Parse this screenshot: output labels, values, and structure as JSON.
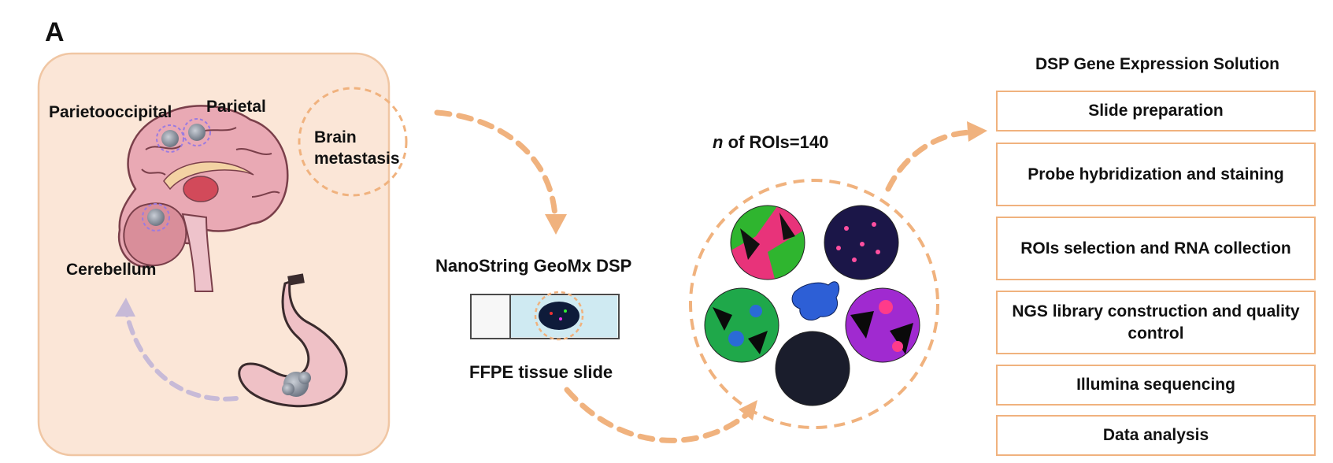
{
  "panel_label": "A",
  "brain": {
    "labels": {
      "parietooccipital": "Parietooccipital",
      "parietal": "Parietal",
      "cerebellum": "Cerebellum",
      "brain_metastasis": "Brain metastasis"
    }
  },
  "slide": {
    "platform": "NanoString GeoMx DSP",
    "tissue": "FFPE tissue slide"
  },
  "rois": {
    "n_label": "n",
    "count_text": " of ROIs=140"
  },
  "workflow": {
    "title": "DSP Gene Expression Solution",
    "steps": [
      "Slide preparation",
      "Probe hybridization and staining",
      "ROIs selection and RNA collection",
      "NGS library construction and quality control",
      "Illumina sequencing",
      "Data analysis"
    ]
  },
  "colors": {
    "accent_orange": "#f0b27e",
    "panel_fill": "#fbe6d7",
    "purple_arrow": "#c7bad7",
    "brain_pink": "#e9a9b4"
  }
}
